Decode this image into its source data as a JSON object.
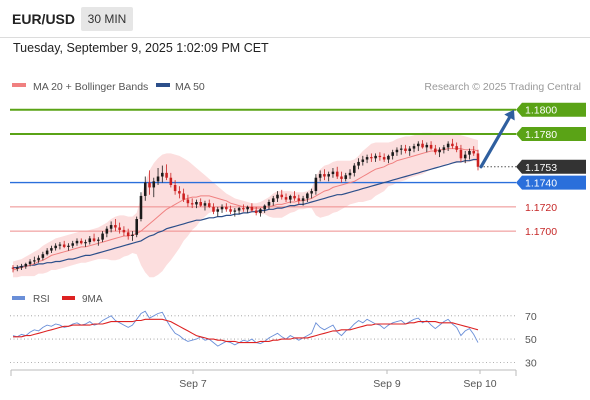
{
  "header": {
    "pair": "EUR/USD",
    "timeframe": "30 MIN",
    "datetime": "Tuesday, September 9, 2025 1:02:09 PM CET"
  },
  "legend": {
    "ma20_label": "MA 20 + Bollinger Bands",
    "ma50_label": "MA 50",
    "credit": "Research © 2025 Trading Central",
    "rsi_label": "RSI",
    "rsi9_label": "9MA"
  },
  "colors": {
    "bullish": "#1a1a1a",
    "bearish": "#cc2020",
    "ma20": "#f08080",
    "ma50": "#2c4f8a",
    "bollinger_fill": "#fcdede",
    "resistance": "#5aa316",
    "pivot": "#2a6fdb",
    "support": "#ee8c8c",
    "current": "#333333",
    "rsi": "#6a8fd8",
    "rsi9": "#dd2222",
    "arrow": "#2f5f9f"
  },
  "chart_data": {
    "type": "candlestick",
    "instrument": "EUR/USD",
    "timeframe": "30 MIN",
    "ylim": [
      1.1668,
      1.1808
    ],
    "x_tick_labels": [
      "Sep 7",
      "Sep 9",
      "Sep 10"
    ],
    "current_price": "1.1753",
    "levels": [
      {
        "value": "1.1800",
        "kind": "resistance"
      },
      {
        "value": "1.1780",
        "kind": "resistance"
      },
      {
        "value": "1.1740",
        "kind": "pivot"
      },
      {
        "value": "1.1720",
        "kind": "support"
      },
      {
        "value": "1.1700",
        "kind": "support"
      }
    ],
    "target": 1.18,
    "candles": [
      [
        1.167,
        1.1672,
        1.1666,
        1.1669
      ],
      [
        1.1669,
        1.1672,
        1.1667,
        1.167
      ],
      [
        1.167,
        1.1673,
        1.1668,
        1.1671
      ],
      [
        1.1671,
        1.1674,
        1.1669,
        1.1673
      ],
      [
        1.1673,
        1.1677,
        1.1671,
        1.1675
      ],
      [
        1.1675,
        1.1679,
        1.1673,
        1.1676
      ],
      [
        1.1676,
        1.168,
        1.1674,
        1.1678
      ],
      [
        1.1678,
        1.1683,
        1.1676,
        1.1681
      ],
      [
        1.1681,
        1.1686,
        1.168,
        1.1684
      ],
      [
        1.1684,
        1.1688,
        1.1682,
        1.1686
      ],
      [
        1.1686,
        1.169,
        1.1684,
        1.1688
      ],
      [
        1.1688,
        1.1691,
        1.1685,
        1.1689
      ],
      [
        1.1689,
        1.1692,
        1.1686,
        1.1687
      ],
      [
        1.1687,
        1.169,
        1.1684,
        1.1688
      ],
      [
        1.1688,
        1.1692,
        1.1686,
        1.169
      ],
      [
        1.169,
        1.1694,
        1.1688,
        1.1692
      ],
      [
        1.1692,
        1.1694,
        1.1689,
        1.169
      ],
      [
        1.169,
        1.1693,
        1.1687,
        1.1691
      ],
      [
        1.1691,
        1.1696,
        1.1689,
        1.1694
      ],
      [
        1.1694,
        1.1698,
        1.1691,
        1.1692
      ],
      [
        1.1692,
        1.1695,
        1.1688,
        1.1693
      ],
      [
        1.1693,
        1.17,
        1.1691,
        1.1698
      ],
      [
        1.1698,
        1.1704,
        1.1695,
        1.1702
      ],
      [
        1.1702,
        1.1708,
        1.1699,
        1.1705
      ],
      [
        1.1705,
        1.171,
        1.17,
        1.1703
      ],
      [
        1.1703,
        1.1707,
        1.1698,
        1.1701
      ],
      [
        1.1701,
        1.1704,
        1.1696,
        1.1699
      ],
      [
        1.1699,
        1.1702,
        1.1693,
        1.1696
      ],
      [
        1.1696,
        1.17,
        1.1692,
        1.1697
      ],
      [
        1.1697,
        1.1712,
        1.1695,
        1.171
      ],
      [
        1.171,
        1.1732,
        1.1708,
        1.1729
      ],
      [
        1.1729,
        1.1745,
        1.1725,
        1.174
      ],
      [
        1.174,
        1.175,
        1.173,
        1.1736
      ],
      [
        1.1736,
        1.1744,
        1.1728,
        1.1741
      ],
      [
        1.1741,
        1.1752,
        1.1738,
        1.1745
      ],
      [
        1.1745,
        1.1754,
        1.174,
        1.1748
      ],
      [
        1.1748,
        1.1755,
        1.1742,
        1.1744
      ],
      [
        1.1744,
        1.1748,
        1.1736,
        1.1738
      ],
      [
        1.1738,
        1.1742,
        1.173,
        1.1733
      ],
      [
        1.1733,
        1.1737,
        1.1727,
        1.1731
      ],
      [
        1.1731,
        1.1735,
        1.1724,
        1.1726
      ],
      [
        1.1726,
        1.173,
        1.172,
        1.1723
      ],
      [
        1.1723,
        1.1727,
        1.1719,
        1.1722
      ],
      [
        1.1722,
        1.1726,
        1.1719,
        1.1724
      ],
      [
        1.1724,
        1.1727,
        1.172,
        1.1721
      ],
      [
        1.1721,
        1.1725,
        1.1717,
        1.1723
      ],
      [
        1.1723,
        1.1726,
        1.1719,
        1.172
      ],
      [
        1.172,
        1.1723,
        1.1714,
        1.1716
      ],
      [
        1.1716,
        1.172,
        1.1712,
        1.1718
      ],
      [
        1.1718,
        1.1722,
        1.1715,
        1.172
      ],
      [
        1.172,
        1.1723,
        1.1716,
        1.1718
      ],
      [
        1.1718,
        1.1721,
        1.1714,
        1.1716
      ],
      [
        1.1716,
        1.1719,
        1.1712,
        1.1717
      ],
      [
        1.1717,
        1.172,
        1.1714,
        1.1719
      ],
      [
        1.1719,
        1.1722,
        1.1716,
        1.1718
      ],
      [
        1.1718,
        1.1721,
        1.1715,
        1.172
      ],
      [
        1.172,
        1.1723,
        1.1716,
        1.1717
      ],
      [
        1.1717,
        1.172,
        1.1713,
        1.1715
      ],
      [
        1.1715,
        1.1719,
        1.1712,
        1.1718
      ],
      [
        1.1718,
        1.1722,
        1.1715,
        1.1721
      ],
      [
        1.1721,
        1.1726,
        1.1718,
        1.1724
      ],
      [
        1.1724,
        1.1729,
        1.1721,
        1.1727
      ],
      [
        1.1727,
        1.1733,
        1.1724,
        1.173
      ],
      [
        1.173,
        1.1734,
        1.1726,
        1.1728
      ],
      [
        1.1728,
        1.1731,
        1.1724,
        1.1726
      ],
      [
        1.1726,
        1.173,
        1.1723,
        1.1729
      ],
      [
        1.1729,
        1.1733,
        1.1725,
        1.1727
      ],
      [
        1.1727,
        1.173,
        1.1722,
        1.1725
      ],
      [
        1.1725,
        1.1729,
        1.1721,
        1.1727
      ],
      [
        1.1727,
        1.1732,
        1.1724,
        1.1731
      ],
      [
        1.1731,
        1.1735,
        1.1727,
        1.1733
      ],
      [
        1.1733,
        1.1747,
        1.173,
        1.1744
      ],
      [
        1.1744,
        1.175,
        1.1741,
        1.1747
      ],
      [
        1.1747,
        1.1751,
        1.1742,
        1.1745
      ],
      [
        1.1745,
        1.1749,
        1.1741,
        1.1747
      ],
      [
        1.1747,
        1.1752,
        1.1744,
        1.1749
      ],
      [
        1.1749,
        1.1753,
        1.1743,
        1.1745
      ],
      [
        1.1745,
        1.1749,
        1.174,
        1.1743
      ],
      [
        1.1743,
        1.1748,
        1.1741,
        1.1746
      ],
      [
        1.1746,
        1.1751,
        1.1743,
        1.1748
      ],
      [
        1.1748,
        1.1756,
        1.1745,
        1.1754
      ],
      [
        1.1754,
        1.176,
        1.1751,
        1.1757
      ],
      [
        1.1757,
        1.1762,
        1.1754,
        1.1759
      ],
      [
        1.1759,
        1.1763,
        1.1756,
        1.1761
      ],
      [
        1.1761,
        1.1764,
        1.1757,
        1.176
      ],
      [
        1.176,
        1.1764,
        1.1757,
        1.1762
      ],
      [
        1.1762,
        1.1765,
        1.1758,
        1.1761
      ],
      [
        1.1761,
        1.1764,
        1.1757,
        1.1759
      ],
      [
        1.1759,
        1.1763,
        1.1756,
        1.1762
      ],
      [
        1.1762,
        1.1767,
        1.1759,
        1.1765
      ],
      [
        1.1765,
        1.1769,
        1.1762,
        1.1767
      ],
      [
        1.1767,
        1.1771,
        1.1763,
        1.1768
      ],
      [
        1.1768,
        1.1771,
        1.1764,
        1.1766
      ],
      [
        1.1766,
        1.177,
        1.1762,
        1.1768
      ],
      [
        1.1768,
        1.1772,
        1.1765,
        1.177
      ],
      [
        1.177,
        1.1774,
        1.1766,
        1.1772
      ],
      [
        1.1772,
        1.1775,
        1.1768,
        1.1769
      ],
      [
        1.1769,
        1.1773,
        1.1765,
        1.1771
      ],
      [
        1.1771,
        1.1774,
        1.1767,
        1.1768
      ],
      [
        1.1768,
        1.1771,
        1.1763,
        1.1765
      ],
      [
        1.1765,
        1.1769,
        1.1761,
        1.1767
      ],
      [
        1.1767,
        1.1771,
        1.1764,
        1.1769
      ],
      [
        1.1769,
        1.1774,
        1.1766,
        1.1772
      ],
      [
        1.1772,
        1.1776,
        1.1768,
        1.177
      ],
      [
        1.177,
        1.1773,
        1.1765,
        1.1767
      ],
      [
        1.1767,
        1.1771,
        1.1757,
        1.176
      ],
      [
        1.176,
        1.1766,
        1.1756,
        1.1763
      ],
      [
        1.1763,
        1.1768,
        1.1759,
        1.1766
      ],
      [
        1.1766,
        1.177,
        1.1762,
        1.1764
      ],
      [
        1.1764,
        1.1767,
        1.175,
        1.1753
      ]
    ],
    "ma20": [
      1.1668,
      1.1669,
      1.167,
      1.1671,
      1.1672,
      1.1673,
      1.1675,
      1.1676,
      1.1678,
      1.168,
      1.1681,
      1.1682,
      1.1683,
      1.1684,
      1.1685,
      1.1686,
      1.1687,
      1.1687,
      1.1688,
      1.1689,
      1.169,
      1.1691,
      1.1692,
      1.1693,
      1.1694,
      1.1695,
      1.1696,
      1.1696,
      1.1697,
      1.1698,
      1.17,
      1.1703,
      1.1706,
      1.1709,
      1.1712,
      1.1715,
      1.1718,
      1.172,
      1.1722,
      1.1724,
      1.1726,
      1.1727,
      1.1728,
      1.1728,
      1.1729,
      1.1729,
      1.1729,
      1.1728,
      1.1727,
      1.1726,
      1.1725,
      1.1723,
      1.1722,
      1.1721,
      1.172,
      1.172,
      1.1719,
      1.1719,
      1.1719,
      1.172,
      1.172,
      1.1721,
      1.1722,
      1.1722,
      1.1723,
      1.1724,
      1.1724,
      1.1725,
      1.1725,
      1.1726,
      1.1727,
      1.1729,
      1.1731,
      1.1733,
      1.1734,
      1.1736,
      1.1737,
      1.1738,
      1.1739,
      1.174,
      1.1741,
      1.1743,
      1.1745,
      1.1747,
      1.1749,
      1.1751,
      1.1752,
      1.1753,
      1.1755,
      1.1756,
      1.1758,
      1.1759,
      1.176,
      1.1761,
      1.1762,
      1.1763,
      1.1764,
      1.1765,
      1.1766,
      1.1766,
      1.1767,
      1.1767,
      1.1768,
      1.1768,
      1.1768,
      1.1768,
      1.1767,
      1.1767,
      1.1767,
      1.1766
    ],
    "ma50": [
      1.167,
      1.167,
      1.1671,
      1.1671,
      1.1672,
      1.1672,
      1.1673,
      1.1673,
      1.1674,
      1.1674,
      1.1675,
      1.1675,
      1.1676,
      1.1677,
      1.1677,
      1.1678,
      1.1679,
      1.168,
      1.168,
      1.1681,
      1.1682,
      1.1683,
      1.1684,
      1.1685,
      1.1686,
      1.1687,
      1.1688,
      1.1689,
      1.169,
      1.1691,
      1.1692,
      1.1694,
      1.1696,
      1.1697,
      1.1699,
      1.17,
      1.1702,
      1.1703,
      1.1704,
      1.1705,
      1.1706,
      1.1707,
      1.1708,
      1.1709,
      1.1709,
      1.171,
      1.1711,
      1.1711,
      1.1712,
      1.1712,
      1.1713,
      1.1713,
      1.1714,
      1.1714,
      1.1715,
      1.1715,
      1.1716,
      1.1716,
      1.1717,
      1.1717,
      1.1718,
      1.1718,
      1.1719,
      1.1719,
      1.172,
      1.1721,
      1.1721,
      1.1722,
      1.1722,
      1.1723,
      1.1724,
      1.1725,
      1.1726,
      1.1727,
      1.1728,
      1.1729,
      1.173,
      1.173,
      1.1731,
      1.1732,
      1.1733,
      1.1734,
      1.1735,
      1.1736,
      1.1737,
      1.1738,
      1.1739,
      1.174,
      1.1741,
      1.1742,
      1.1743,
      1.1744,
      1.1745,
      1.1746,
      1.1747,
      1.1748,
      1.1749,
      1.175,
      1.1751,
      1.1752,
      1.1753,
      1.1754,
      1.1755,
      1.1756,
      1.1757,
      1.1757,
      1.1758,
      1.1758,
      1.1759,
      1.1759
    ],
    "bollinger_upper": [
      1.1675,
      1.1676,
      1.1677,
      1.1679,
      1.1681,
      1.1683,
      1.1685,
      1.1688,
      1.169,
      1.1692,
      1.1694,
      1.1695,
      1.1696,
      1.1697,
      1.1698,
      1.1699,
      1.17,
      1.17,
      1.1701,
      1.1702,
      1.1703,
      1.1705,
      1.1707,
      1.171,
      1.1712,
      1.1713,
      1.1713,
      1.1712,
      1.1712,
      1.1715,
      1.1728,
      1.174,
      1.175,
      1.1756,
      1.176,
      1.1763,
      1.1764,
      1.1764,
      1.1763,
      1.1762,
      1.176,
      1.1758,
      1.1755,
      1.1752,
      1.1749,
      1.1746,
      1.1743,
      1.174,
      1.1737,
      1.1734,
      1.1731,
      1.1729,
      1.1727,
      1.1726,
      1.1725,
      1.1724,
      1.1723,
      1.1723,
      1.1724,
      1.1726,
      1.1728,
      1.1731,
      1.1733,
      1.1733,
      1.1733,
      1.1733,
      1.1732,
      1.1732,
      1.1732,
      1.1733,
      1.1735,
      1.1745,
      1.1751,
      1.1754,
      1.1755,
      1.1757,
      1.1758,
      1.1758,
      1.1758,
      1.1758,
      1.1759,
      1.1762,
      1.1766,
      1.1769,
      1.1772,
      1.1773,
      1.1773,
      1.1773,
      1.1773,
      1.1774,
      1.1776,
      1.1777,
      1.1778,
      1.1778,
      1.1779,
      1.178,
      1.1781,
      1.1781,
      1.1781,
      1.178,
      1.178,
      1.178,
      1.178,
      1.178,
      1.178,
      1.1779,
      1.1778,
      1.1777,
      1.1776,
      1.1775
    ],
    "bollinger_lower": [
      1.1662,
      1.1662,
      1.1663,
      1.1663,
      1.1663,
      1.1663,
      1.1665,
      1.1665,
      1.1666,
      1.1668,
      1.1668,
      1.1669,
      1.167,
      1.1671,
      1.1672,
      1.1673,
      1.1674,
      1.1674,
      1.1675,
      1.1676,
      1.1677,
      1.1677,
      1.1677,
      1.1676,
      1.1676,
      1.1677,
      1.1679,
      1.168,
      1.1682,
      1.1681,
      1.1672,
      1.1666,
      1.1662,
      1.1662,
      1.1664,
      1.1667,
      1.1672,
      1.1676,
      1.1681,
      1.1686,
      1.1692,
      1.1696,
      1.1701,
      1.1704,
      1.1709,
      1.1712,
      1.1715,
      1.1716,
      1.1717,
      1.1718,
      1.1719,
      1.1717,
      1.1717,
      1.1716,
      1.1715,
      1.1716,
      1.1715,
      1.1715,
      1.1714,
      1.1714,
      1.1712,
      1.1711,
      1.1711,
      1.1711,
      1.1713,
      1.1715,
      1.1716,
      1.1718,
      1.1718,
      1.1719,
      1.1719,
      1.1713,
      1.1711,
      1.1712,
      1.1713,
      1.1715,
      1.1716,
      1.1718,
      1.172,
      1.1722,
      1.1723,
      1.1724,
      1.1724,
      1.1725,
      1.1726,
      1.1729,
      1.1731,
      1.1733,
      1.1737,
      1.1738,
      1.174,
      1.1741,
      1.1742,
      1.1744,
      1.1745,
      1.1746,
      1.1747,
      1.1749,
      1.1751,
      1.1752,
      1.1754,
      1.1754,
      1.1756,
      1.1756,
      1.1756,
      1.1757,
      1.1756,
      1.1757,
      1.1758,
      1.1757
    ],
    "rsi": {
      "ylim": [
        26,
        75
      ],
      "ticks": [
        70,
        50,
        30
      ],
      "rsi": [
        53,
        52,
        54,
        53,
        56,
        58,
        57,
        60,
        62,
        61,
        63,
        62,
        60,
        61,
        63,
        64,
        62,
        63,
        65,
        62,
        63,
        66,
        68,
        70,
        66,
        64,
        62,
        60,
        62,
        67,
        72,
        74,
        68,
        70,
        72,
        73,
        66,
        60,
        55,
        53,
        50,
        48,
        49,
        50,
        52,
        49,
        50,
        47,
        44,
        46,
        48,
        47,
        45,
        47,
        49,
        48,
        50,
        47,
        46,
        48,
        51,
        53,
        55,
        52,
        50,
        53,
        51,
        49,
        51,
        53,
        55,
        64,
        60,
        58,
        60,
        62,
        56,
        53,
        57,
        59,
        63,
        66,
        64,
        67,
        65,
        63,
        62,
        59,
        62,
        64,
        65,
        66,
        63,
        65,
        67,
        68,
        64,
        66,
        62,
        59,
        62,
        65,
        67,
        63,
        60,
        53,
        57,
        59,
        54,
        47
      ],
      "ma9": [
        52,
        52,
        52,
        53,
        53,
        54,
        55,
        56,
        57,
        58,
        59,
        60,
        61,
        61,
        62,
        62,
        62,
        62,
        62,
        63,
        63,
        63,
        64,
        65,
        65,
        65,
        65,
        65,
        65,
        66,
        66,
        67,
        67,
        67,
        67,
        67,
        66,
        65,
        63,
        61,
        59,
        57,
        55,
        53,
        52,
        51,
        50,
        50,
        49,
        49,
        48,
        48,
        48,
        47,
        47,
        47,
        47,
        47,
        48,
        48,
        48,
        49,
        49,
        50,
        50,
        50,
        51,
        51,
        51,
        51,
        52,
        53,
        54,
        55,
        56,
        57,
        57,
        58,
        58,
        58,
        59,
        60,
        61,
        62,
        62,
        63,
        63,
        63,
        63,
        63,
        63,
        63,
        63,
        64,
        64,
        65,
        65,
        65,
        65,
        65,
        64,
        64,
        64,
        64,
        63,
        62,
        61,
        60,
        59,
        58
      ]
    }
  }
}
